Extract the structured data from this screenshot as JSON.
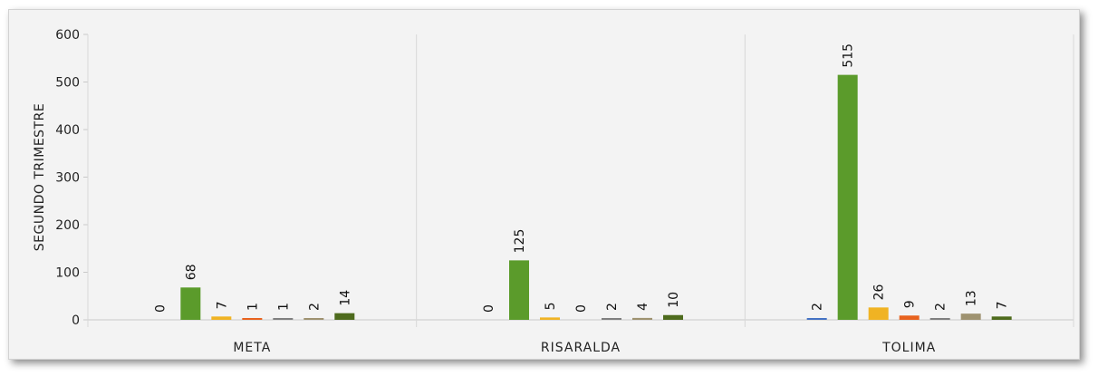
{
  "chart_data": {
    "type": "bar",
    "title": "",
    "xlabel": "",
    "ylabel": "SEGUNDO TRIMESTRE",
    "ylim": [
      0,
      600
    ],
    "yticks": [
      0,
      100,
      200,
      300,
      400,
      500,
      600
    ],
    "grid": false,
    "legend": "none",
    "categories": [
      "META",
      "RISARALDA",
      "TOLIMA"
    ],
    "series": [
      {
        "color": "#4472c4",
        "values": [
          0,
          0,
          2
        ]
      },
      {
        "color": "#5b9b2b",
        "values": [
          68,
          125,
          515
        ]
      },
      {
        "color": "#f0b323",
        "values": [
          7,
          5,
          26
        ]
      },
      {
        "color": "#e8621e",
        "values": [
          1,
          0,
          9
        ]
      },
      {
        "color": "#7f7f7f",
        "values": [
          1,
          2,
          2
        ]
      },
      {
        "color": "#9e9270",
        "values": [
          2,
          4,
          13
        ]
      },
      {
        "color": "#4e6b1d",
        "values": [
          14,
          10,
          7
        ]
      }
    ]
  }
}
